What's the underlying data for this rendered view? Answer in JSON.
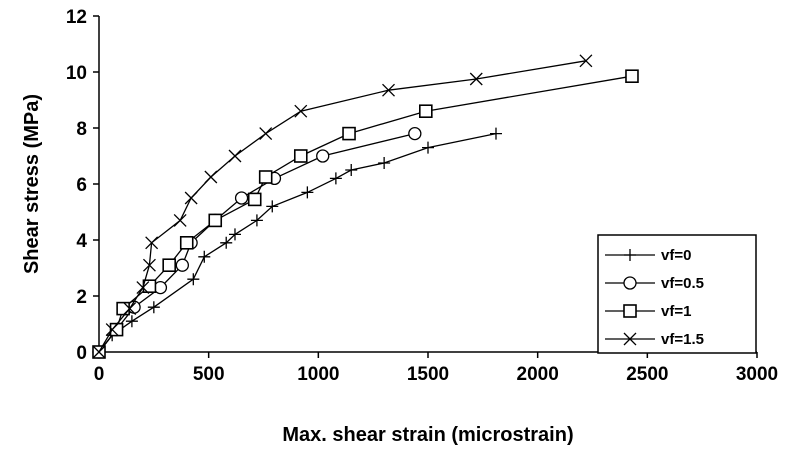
{
  "chart_data": {
    "type": "line",
    "xlabel": "Max. shear strain (microstrain)",
    "ylabel": "Shear stress (MPa)",
    "xlim": [
      0,
      3000
    ],
    "ylim": [
      0,
      12
    ],
    "x_ticks": [
      "0",
      "500",
      "1000",
      "1500",
      "2000",
      "2500",
      "3000"
    ],
    "y_ticks": [
      "0",
      "2",
      "4",
      "6",
      "8",
      "10",
      "12"
    ],
    "grid": false,
    "legend_position": "bottom-right",
    "series": [
      {
        "name": "vf=0",
        "marker": "plus",
        "x": [
          0,
          60,
          150,
          250,
          430,
          480,
          580,
          620,
          720,
          790,
          950,
          1080,
          1150,
          1300,
          1500,
          1810
        ],
        "y": [
          0,
          0.6,
          1.1,
          1.6,
          2.6,
          3.4,
          3.9,
          4.2,
          4.7,
          5.2,
          5.7,
          6.2,
          6.5,
          6.75,
          7.3,
          7.8
        ]
      },
      {
        "name": "vf=0.5",
        "marker": "circle",
        "x": [
          0,
          80,
          160,
          280,
          380,
          420,
          530,
          650,
          800,
          1020,
          1440
        ],
        "y": [
          0,
          0.8,
          1.6,
          2.3,
          3.1,
          3.9,
          4.7,
          5.5,
          6.2,
          7.0,
          7.8
        ]
      },
      {
        "name": "vf=1",
        "marker": "square",
        "x": [
          0,
          80,
          110,
          230,
          320,
          400,
          530,
          710,
          760,
          920,
          1140,
          1490,
          2430
        ],
        "y": [
          0,
          0.8,
          1.55,
          2.35,
          3.1,
          3.9,
          4.7,
          5.45,
          6.25,
          7.0,
          7.8,
          8.6,
          9.85
        ]
      },
      {
        "name": "vf=1.5",
        "marker": "x",
        "x": [
          0,
          60,
          140,
          200,
          230,
          240,
          370,
          420,
          510,
          620,
          760,
          920,
          1320,
          1720,
          2220
        ],
        "y": [
          0,
          0.8,
          1.55,
          2.3,
          3.1,
          3.9,
          4.7,
          5.5,
          6.25,
          7.0,
          7.8,
          8.6,
          9.35,
          9.75,
          10.4
        ]
      }
    ]
  }
}
